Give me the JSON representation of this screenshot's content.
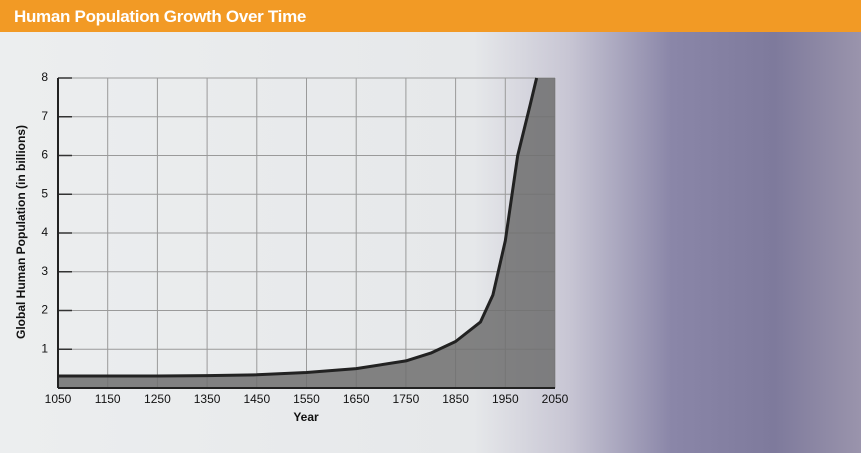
{
  "chart_data": {
    "type": "area",
    "title": "Human Population Growth Over Time",
    "x_label": "Year",
    "y_label": "Global Human Population (in billions)",
    "x": [
      1050,
      1150,
      1250,
      1350,
      1450,
      1550,
      1650,
      1750,
      1800,
      1850,
      1900,
      1925,
      1950,
      1975,
      2000,
      2013
    ],
    "values": [
      0.31,
      0.31,
      0.31,
      0.32,
      0.34,
      0.4,
      0.5,
      0.7,
      0.9,
      1.2,
      1.7,
      2.4,
      3.8,
      6.0,
      7.3,
      8.0
    ],
    "color": "#222222",
    "fill": "#6e6e6e",
    "xlim": [
      1050,
      2050
    ],
    "xticks": [
      1050,
      1150,
      1250,
      1350,
      1450,
      1550,
      1650,
      1750,
      1850,
      1950,
      2050
    ],
    "ylim": [
      0,
      8
    ],
    "yticks": [
      1,
      2,
      3,
      4,
      5,
      6,
      7,
      8
    ],
    "grid": true
  }
}
